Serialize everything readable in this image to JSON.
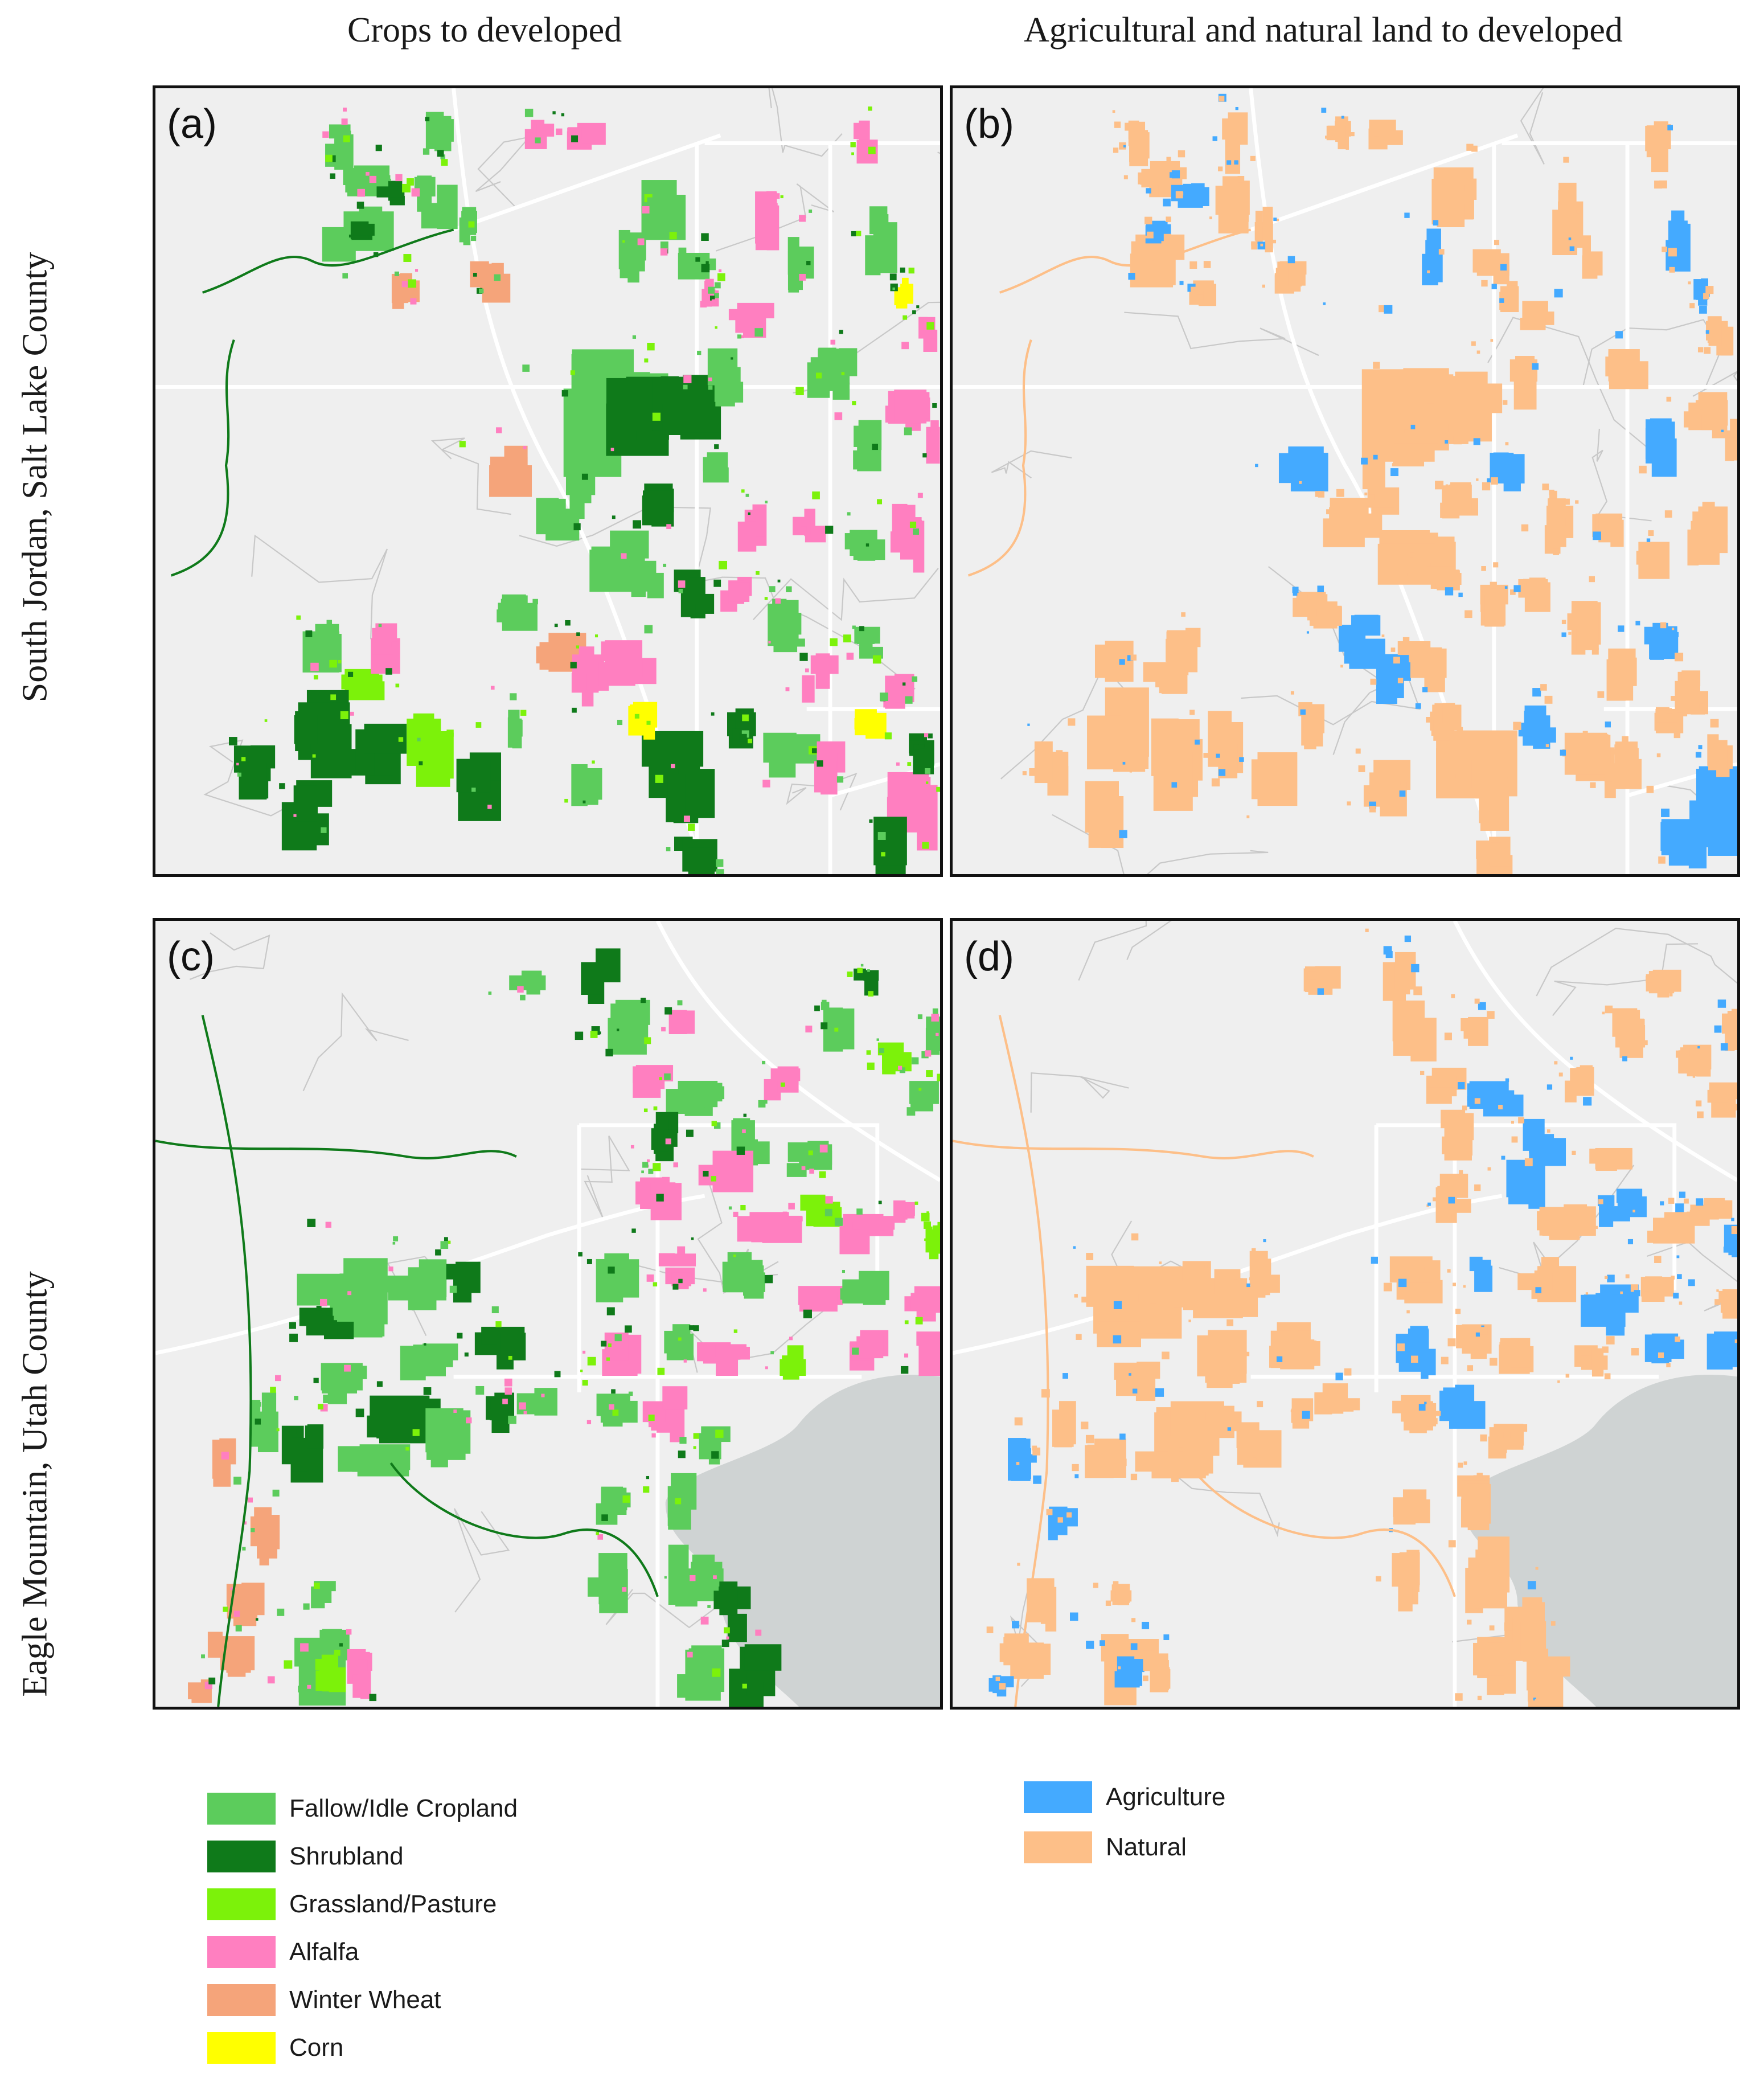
{
  "columns": [
    {
      "title": "Crops to developed"
    },
    {
      "title": "Agricultural and natural land to developed"
    }
  ],
  "rows": [
    {
      "title": "South Jordan, Salt Lake County"
    },
    {
      "title": "Eagle Mountain, Utah County"
    }
  ],
  "panels": [
    {
      "id": "a",
      "label": "(a)",
      "scheme": "crops",
      "region": "south-jordan"
    },
    {
      "id": "b",
      "label": "(b)",
      "scheme": "agnat",
      "region": "south-jordan"
    },
    {
      "id": "c",
      "label": "(c)",
      "scheme": "crops",
      "region": "eagle-mountain"
    },
    {
      "id": "d",
      "label": "(d)",
      "scheme": "agnat",
      "region": "eagle-mountain"
    }
  ],
  "legend_crops": [
    {
      "label": "Fallow/Idle Cropland",
      "color": "#5ccc5c"
    },
    {
      "label": "Shrubland",
      "color": "#0f7a1a"
    },
    {
      "label": "Grassland/Pasture",
      "color": "#7cf20a"
    },
    {
      "label": "Alfalfa",
      "color": "#ff7fc0"
    },
    {
      "label": "Winter Wheat",
      "color": "#f5a47a"
    },
    {
      "label": "Corn",
      "color": "#ffff00"
    }
  ],
  "legend_agnat": [
    {
      "label": "Agriculture",
      "color": "#44aaff"
    },
    {
      "label": "Natural",
      "color": "#fdbf88"
    }
  ],
  "map_colors": {
    "background": "#efefef",
    "roads": "#ffffff",
    "lake": "#cfd3d3",
    "streams": "#c8c8c8"
  }
}
